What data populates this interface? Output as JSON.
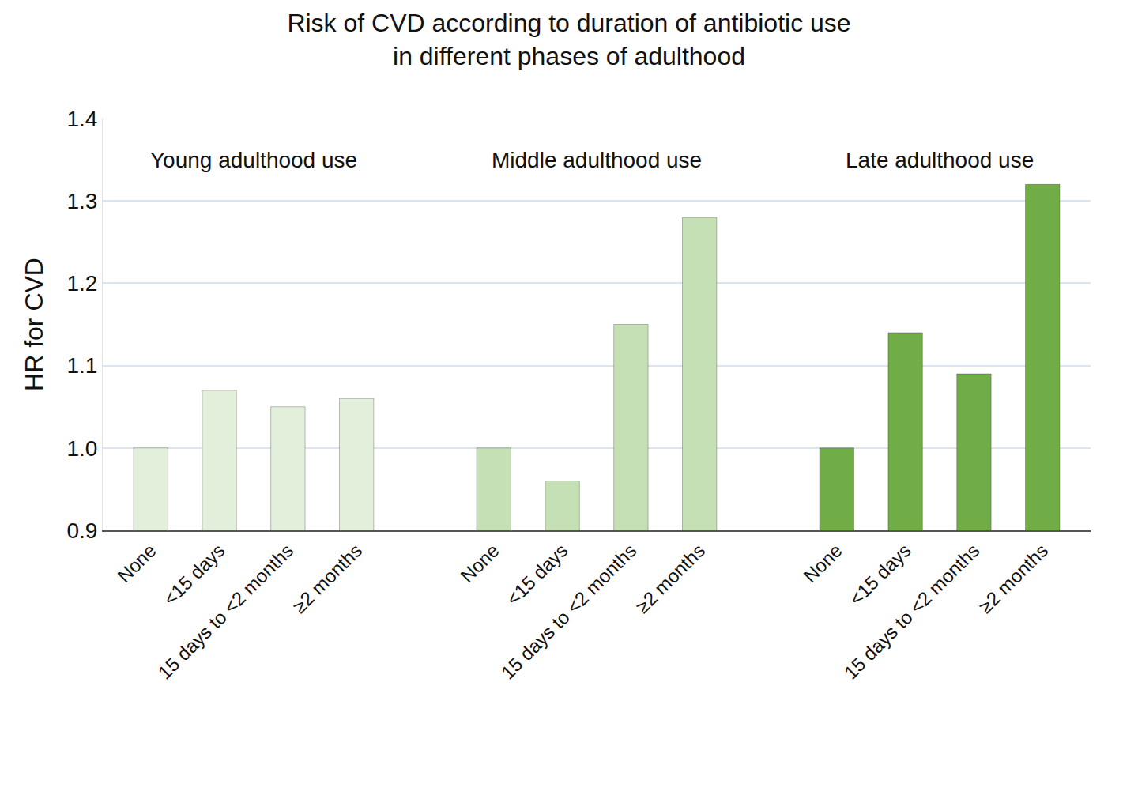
{
  "chart_data": {
    "type": "bar",
    "title": "Risk of CVD according to duration of antibiotic use\nin different phases of adulthood",
    "y_label": "HR for CVD",
    "series": [
      {
        "name": "Young adulthood use",
        "color": "#e2efda",
        "categories": [
          "None",
          "<15 days",
          "15 days to <2 months",
          "≥2 months"
        ],
        "values": [
          1.0,
          1.07,
          1.05,
          1.06
        ]
      },
      {
        "name": "Middle adulthood use",
        "color": "#c5e0b4",
        "categories": [
          "None",
          "<15 days",
          "15 days to <2 months",
          "≥2 months"
        ],
        "values": [
          1.0,
          0.96,
          1.15,
          1.28
        ]
      },
      {
        "name": "Late adulthood use",
        "color": "#70ad47",
        "categories": [
          "None",
          "<15 days",
          "15 days to <2 months",
          "≥2 months"
        ],
        "values": [
          1.0,
          1.14,
          1.09,
          1.32
        ]
      }
    ],
    "ylim": [
      0.9,
      1.4
    ],
    "yticks": [
      0.9,
      {
        "value": 1.0,
        "label": "1.0"
      },
      1.1,
      1.2,
      1.3,
      1.4
    ],
    "grid": true
  }
}
